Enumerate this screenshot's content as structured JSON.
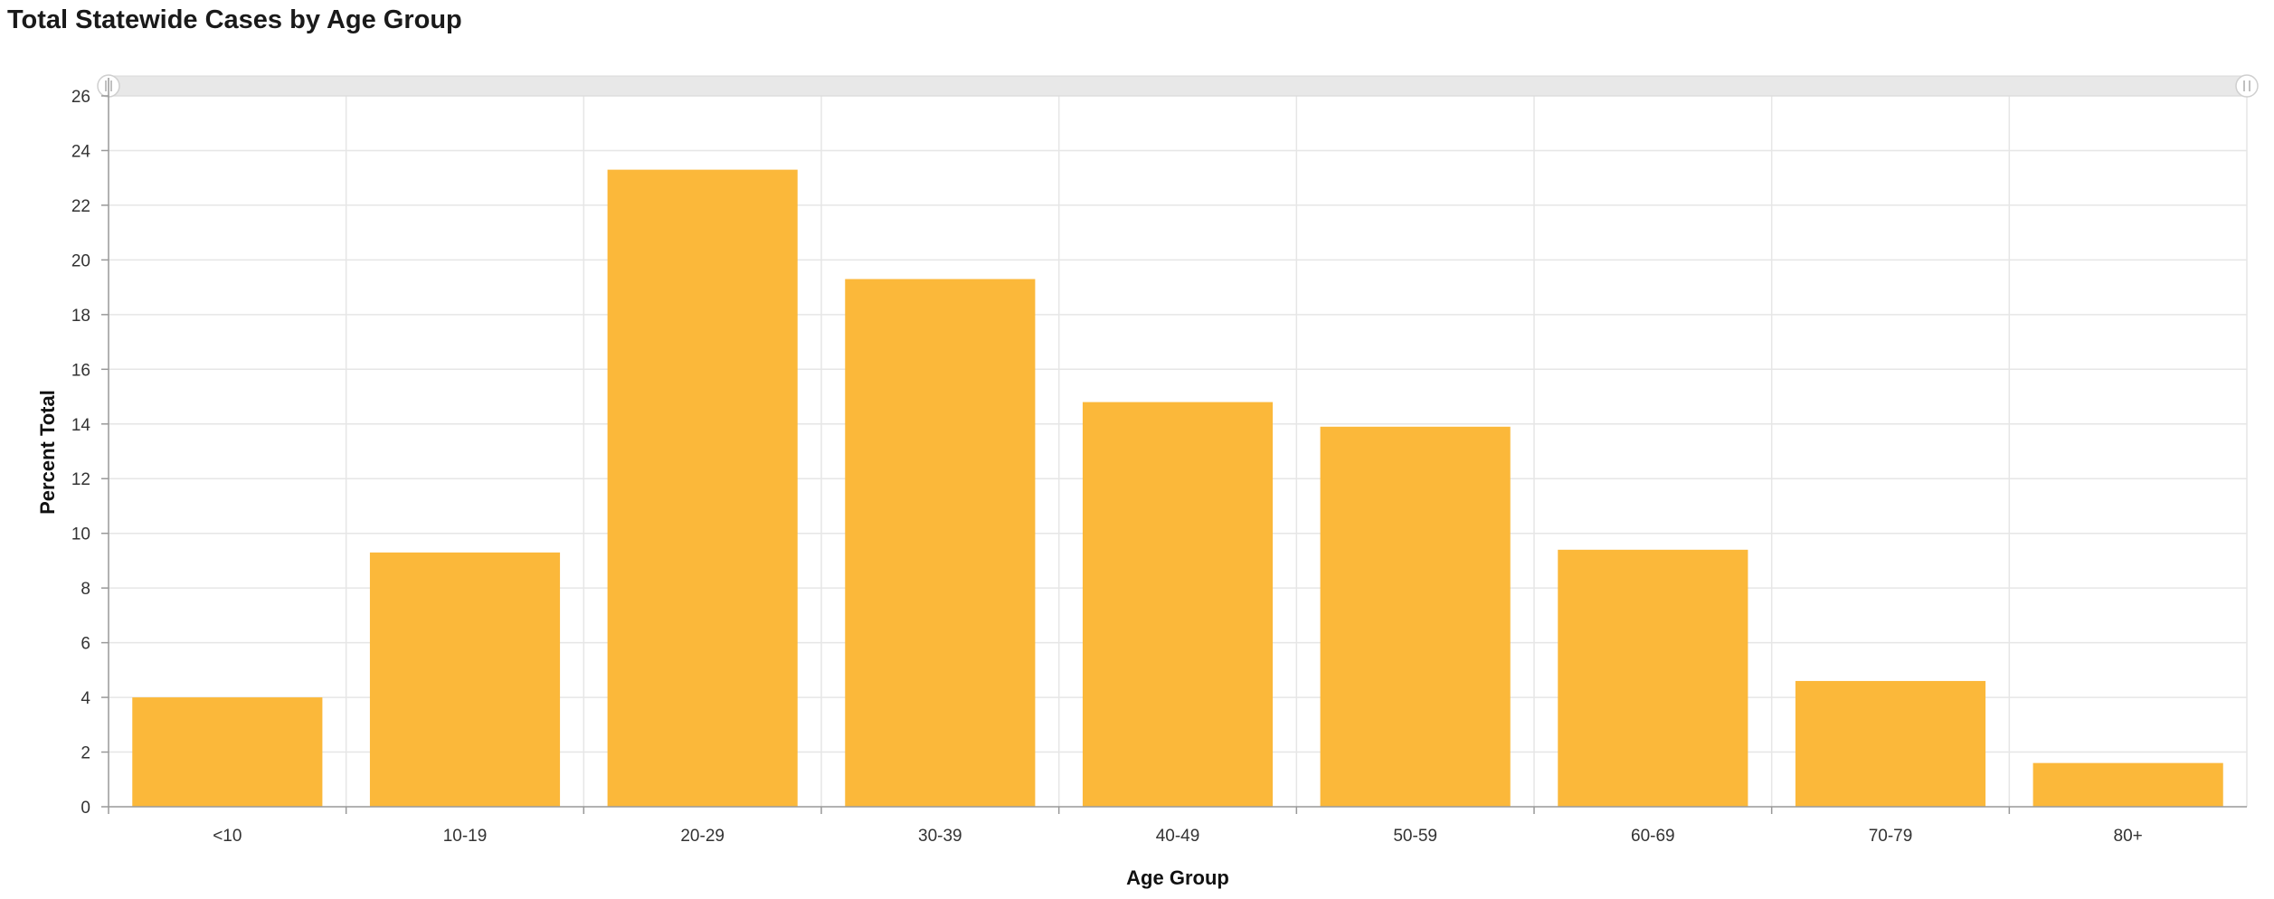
{
  "title": "Total Statewide Cases by Age Group",
  "chart_data": {
    "type": "bar",
    "title": "Total Statewide Cases by Age Group",
    "xlabel": "Age Group",
    "ylabel": "Percent Total",
    "categories": [
      "<10",
      "10-19",
      "20-29",
      "30-39",
      "40-49",
      "50-59",
      "60-69",
      "70-79",
      "80+"
    ],
    "values": [
      4.0,
      9.3,
      23.3,
      19.3,
      14.8,
      13.9,
      9.4,
      4.6,
      1.6
    ],
    "ylim": [
      0,
      26
    ],
    "yticks": [
      0,
      2,
      4,
      6,
      8,
      10,
      12,
      14,
      16,
      18,
      20,
      22,
      24,
      26
    ],
    "grid": true,
    "bar_color": "#FBB83A",
    "range_slider": true
  }
}
